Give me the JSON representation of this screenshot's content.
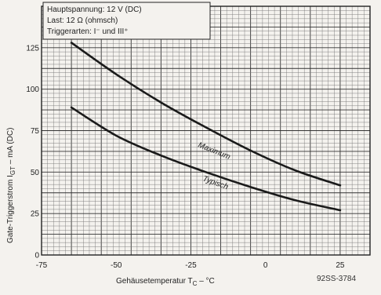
{
  "chart_data": {
    "type": "line",
    "xlabel": "Gehäusetemperatur T",
    "xlabel_sub": "C",
    "xlabel_unit": " – °C",
    "ylabel": "Gate-Triggerstrom I",
    "ylabel_sub": "GT",
    "ylabel_unit": " – mA (DC)",
    "xlim": [
      -75,
      35
    ],
    "ylim": [
      0,
      150
    ],
    "x_ticks": [
      -75,
      -50,
      -25,
      0,
      25
    ],
    "x_tick_labels": [
      "-75",
      "-50",
      "-25",
      "0",
      "25"
    ],
    "y_ticks": [
      0,
      25,
      50,
      75,
      100,
      125
    ],
    "y_tick_labels": [
      "0",
      "25",
      "50",
      "75",
      "100",
      "125"
    ],
    "grid": true,
    "legend_lines": [
      "Hauptspannung: 12 V (DC)",
      "Last: 12 Ω (ohmsch)",
      "Triggerarten: I⁻ und III⁺"
    ],
    "series": [
      {
        "name": "Maximum",
        "x": [
          -65,
          -50,
          -35,
          -20,
          -5,
          10,
          25
        ],
        "y": [
          128,
          109,
          92,
          77,
          63,
          51,
          42
        ]
      },
      {
        "name": "Typisch",
        "x": [
          -65,
          -50,
          -35,
          -20,
          -5,
          10,
          25
        ],
        "y": [
          89,
          72,
          60,
          50,
          41,
          33,
          27
        ]
      }
    ],
    "figure_code": "92SS-3784"
  }
}
